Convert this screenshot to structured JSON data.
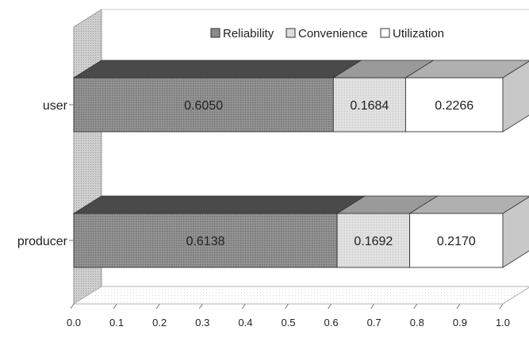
{
  "chart_data": {
    "type": "bar",
    "stacked": true,
    "orientation": "horizontal",
    "style": "3d",
    "categories": [
      "user",
      "producer"
    ],
    "series": [
      {
        "name": "Reliability",
        "values": [
          0.605,
          0.6138
        ],
        "labels": [
          "0.6050",
          "0.6138"
        ],
        "color": "#8c8c8c"
      },
      {
        "name": "Convenience",
        "values": [
          0.1684,
          0.1692
        ],
        "labels": [
          "0.1684",
          "0.1692"
        ],
        "color": "#dcdcdc"
      },
      {
        "name": "Utilization",
        "values": [
          0.2266,
          0.217
        ],
        "labels": [
          "0.2266",
          "0.2170"
        ],
        "color": "#ffffff"
      }
    ],
    "xlim": [
      0,
      1
    ],
    "xticks": [
      "0.0",
      "0.1",
      "0.2",
      "0.3",
      "0.4",
      "0.5",
      "0.6",
      "0.7",
      "0.8",
      "0.9",
      "1.0"
    ],
    "legend_position": "top-right",
    "grid": false
  }
}
